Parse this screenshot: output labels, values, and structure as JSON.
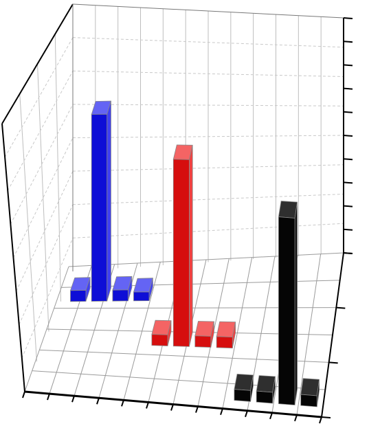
{
  "chart_data": {
    "type": "bar",
    "projection": "3d",
    "title": "",
    "xlabel": "",
    "ylabel": "",
    "zlabel": "",
    "grid": true,
    "legend": "none",
    "tick_labels_visible": false,
    "zlim": [
      0,
      1
    ],
    "groups": [
      {
        "color": "#1010ee",
        "values": [
          0.05,
          0.85,
          0.05,
          0.04
        ]
      },
      {
        "color": "#ee1010",
        "values": [
          0.05,
          0.85,
          0.05,
          0.05
        ]
      },
      {
        "color": "#0a0a0a",
        "values": [
          0.05,
          0.05,
          0.85,
          0.05
        ]
      }
    ]
  }
}
